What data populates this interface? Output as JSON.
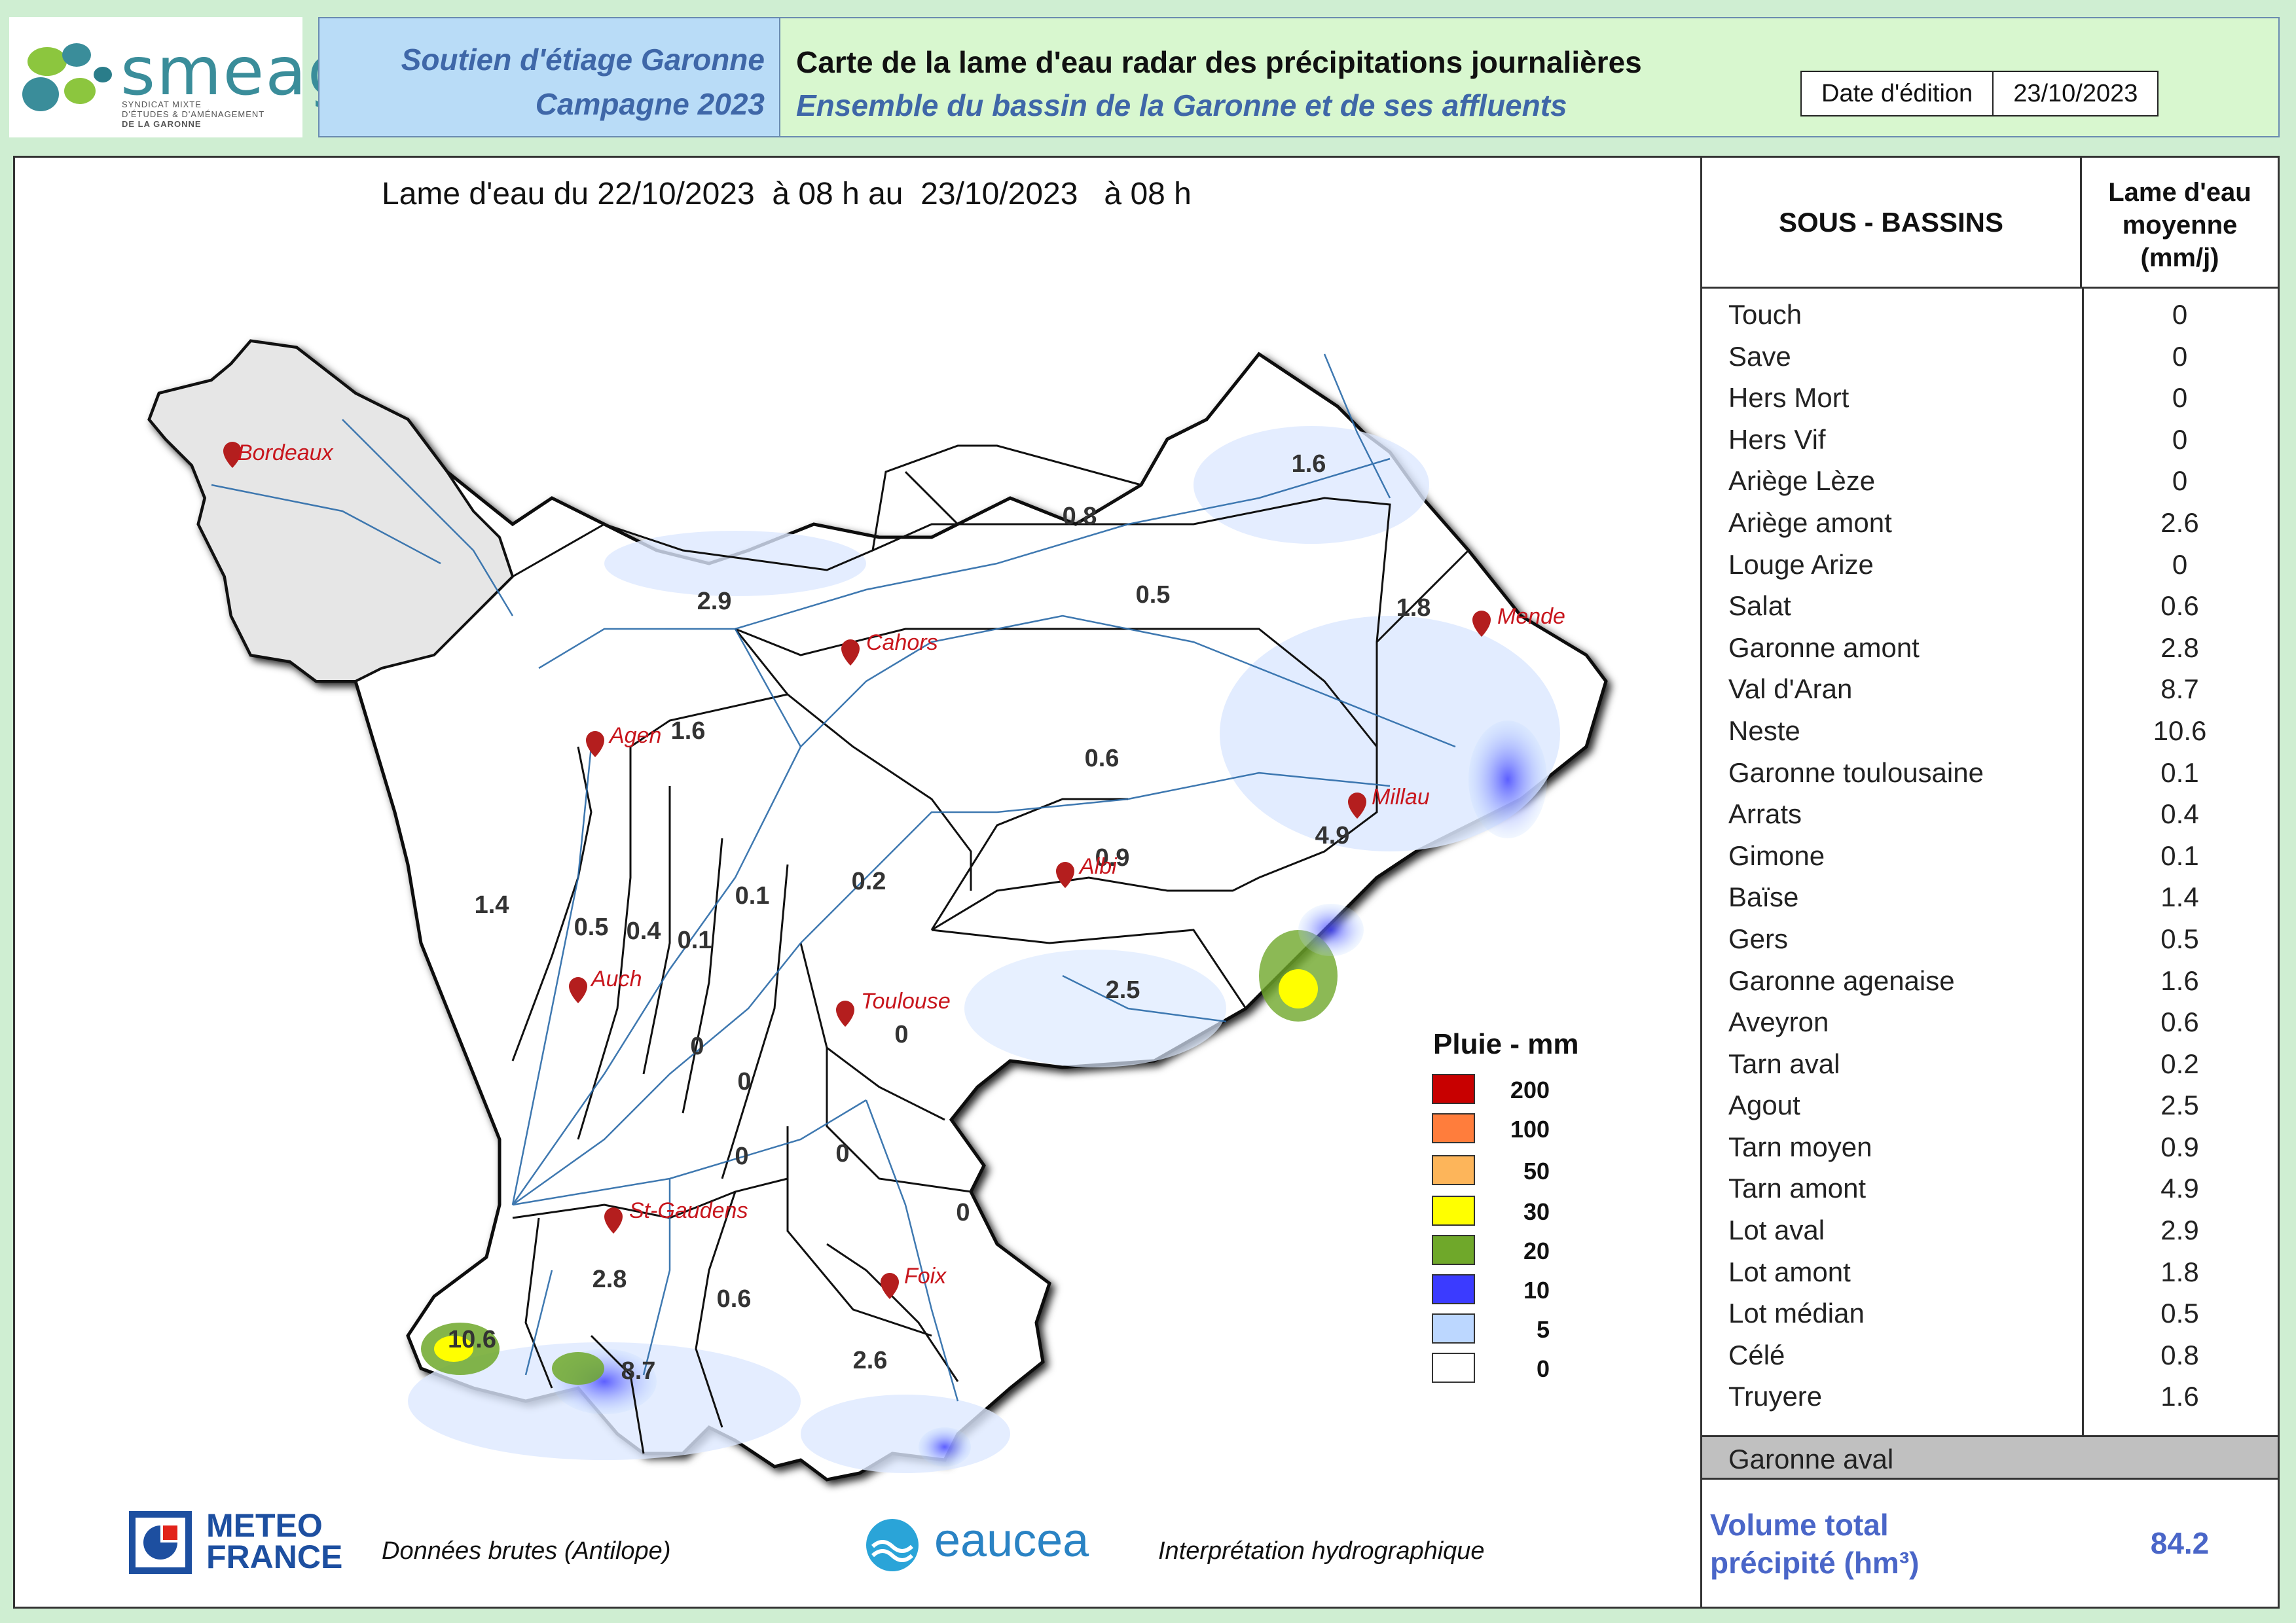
{
  "header": {
    "logo_name": "smeag",
    "logo_sub_1": "SYNDICAT MIXTE",
    "logo_sub_2": "D'ÉTUDES & D'AMÉNAGEMENT",
    "logo_sub_3": "DE LA GARONNE",
    "campaign_line1": "Soutien d'étiage Garonne",
    "campaign_line2": "Campagne 2023",
    "title": "Carte de la lame d'eau radar des précipitations journalières",
    "subtitle": "Ensemble du bassin de la Garonne et de ses affluents",
    "date_label": "Date d'édition",
    "date_value": "23/10/2023"
  },
  "map": {
    "period": "Lame d'eau du 22/10/2023  à 08 h au  23/10/2023   à 08 h",
    "cities": [
      "Bordeaux",
      "Cahors",
      "Mende",
      "Agen",
      "Millau",
      "Albi",
      "Auch",
      "Toulouse",
      "St-Gaudens",
      "Foix"
    ],
    "basin_values": [
      "1.6",
      "0.8",
      "0.5",
      "1.8",
      "2.9",
      "1.6",
      "0.6",
      "4.9",
      "0.9",
      "0.2",
      "0.1",
      "1.4",
      "0.5",
      "0.4",
      "0.1",
      "2.5",
      "0",
      "0",
      "0",
      "0",
      "0",
      "0",
      "2.8",
      "0.6",
      "10.6",
      "8.7",
      "2.6"
    ],
    "legend_title": "Pluie - mm",
    "legend": [
      {
        "value": "200",
        "color": "#c80000"
      },
      {
        "value": "100",
        "color": "#ff7d3c"
      },
      {
        "value": "50",
        "color": "#fdb55a"
      },
      {
        "value": "30",
        "color": "#ffff00"
      },
      {
        "value": "20",
        "color": "#6fa82a"
      },
      {
        "value": "10",
        "color": "#3b3bff"
      },
      {
        "value": "5",
        "color": "#bcd7ff"
      },
      {
        "value": "0",
        "color": "#ffffff"
      }
    ]
  },
  "footer": {
    "meteo_line1": "METEO",
    "meteo_line2": "FRANCE",
    "source_note": "Données brutes (Antilope)",
    "eaucea": "eaucea",
    "interp_note": "Interprétation hydrographique"
  },
  "table": {
    "col1_header": "SOUS - BASSINS",
    "col2_header_1": "Lame d'eau",
    "col2_header_2": "moyenne",
    "col2_header_3": "(mm/j)",
    "rows": [
      {
        "name": "Touch",
        "value": "0"
      },
      {
        "name": "Save",
        "value": "0"
      },
      {
        "name": "Hers Mort",
        "value": "0"
      },
      {
        "name": "Hers Vif",
        "value": "0"
      },
      {
        "name": "Ariège Lèze",
        "value": "0"
      },
      {
        "name": "Ariège amont",
        "value": "2.6"
      },
      {
        "name": "Louge Arize",
        "value": "0"
      },
      {
        "name": "Salat",
        "value": "0.6"
      },
      {
        "name": "Garonne amont",
        "value": "2.8"
      },
      {
        "name": "Val d'Aran",
        "value": "8.7"
      },
      {
        "name": "Neste",
        "value": "10.6"
      },
      {
        "name": "Garonne toulousaine",
        "value": "0.1"
      },
      {
        "name": "Arrats",
        "value": "0.4"
      },
      {
        "name": "Gimone",
        "value": "0.1"
      },
      {
        "name": "Baïse",
        "value": "1.4"
      },
      {
        "name": "Gers",
        "value": "0.5"
      },
      {
        "name": "Garonne agenaise",
        "value": "1.6"
      },
      {
        "name": "Aveyron",
        "value": "0.6"
      },
      {
        "name": "Tarn aval",
        "value": "0.2"
      },
      {
        "name": "Agout",
        "value": "2.5"
      },
      {
        "name": "Tarn moyen",
        "value": "0.9"
      },
      {
        "name": "Tarn amont",
        "value": "4.9"
      },
      {
        "name": "Lot aval",
        "value": "2.9"
      },
      {
        "name": "Lot amont",
        "value": "1.8"
      },
      {
        "name": "Lot médian",
        "value": "0.5"
      },
      {
        "name": "Célé",
        "value": "0.8"
      },
      {
        "name": "Truyere",
        "value": "1.6"
      }
    ],
    "aval_row": "Garonne aval",
    "volume_label_1": "Volume total",
    "volume_label_2": "précipité (hm³)",
    "volume_value": "84.2"
  }
}
